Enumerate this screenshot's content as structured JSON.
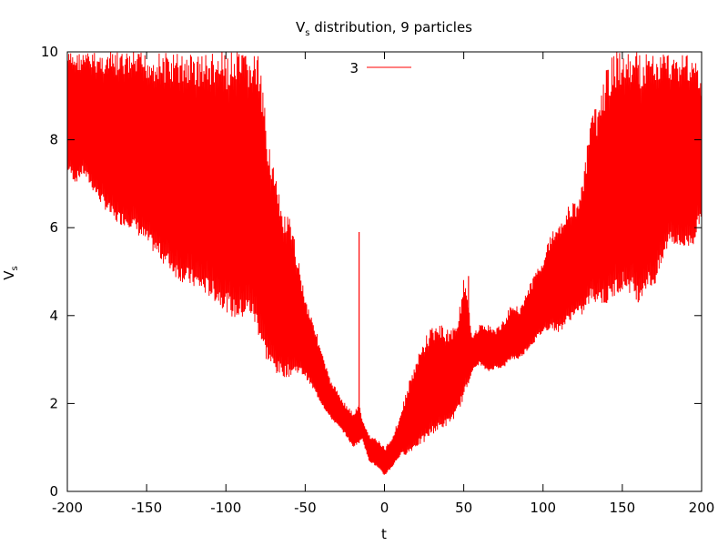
{
  "chart_data": {
    "type": "line",
    "title_main": "V",
    "title_sub": "s",
    "title_rest": " distribution, 9 particles",
    "xlabel": "t",
    "ylabel_main": "V",
    "ylabel_sub": "s",
    "xlim": [
      -200,
      200
    ],
    "ylim": [
      0,
      10
    ],
    "xticks": [
      -200,
      -150,
      -100,
      -50,
      0,
      50,
      100,
      150,
      200
    ],
    "yticks": [
      0,
      2,
      4,
      6,
      8,
      10
    ],
    "xtick_labels": [
      "-200",
      "-150",
      "-100",
      "-50",
      "0",
      "50",
      "100",
      "150",
      "200"
    ],
    "ytick_labels": [
      "0",
      "2",
      "4",
      "6",
      "8",
      "10"
    ],
    "grid": false,
    "legend_position": "top-center",
    "series": [
      {
        "name": "3",
        "color": "#ff0000",
        "lower_envelope": {
          "x": [
            -200,
            -195,
            -190,
            -180,
            -170,
            -160,
            -150,
            -140,
            -130,
            -120,
            -110,
            -100,
            -95,
            -90,
            -85,
            -80,
            -75,
            -70,
            -65,
            -60,
            -55,
            -50,
            -45,
            -40,
            -35,
            -30,
            -25,
            -20,
            -16,
            -14,
            -10,
            -5,
            0,
            5,
            10,
            15,
            20,
            25,
            30,
            35,
            40,
            45,
            50,
            55,
            60,
            65,
            70,
            75,
            80,
            85,
            90,
            95,
            100,
            105,
            110,
            115,
            120,
            125,
            130,
            135,
            140,
            145,
            150,
            155,
            160,
            165,
            170,
            175,
            180,
            185,
            190,
            195,
            200
          ],
          "y": [
            7.3,
            7.0,
            7.2,
            6.6,
            6.1,
            6.0,
            5.6,
            5.2,
            4.8,
            4.6,
            4.4,
            4.1,
            3.9,
            3.9,
            4.0,
            3.6,
            3.0,
            2.7,
            2.6,
            2.6,
            2.7,
            2.6,
            2.3,
            2.0,
            1.7,
            1.5,
            1.3,
            1.0,
            1.1,
            1.2,
            0.7,
            0.55,
            0.35,
            0.55,
            0.8,
            0.85,
            1.0,
            1.1,
            1.3,
            1.4,
            1.5,
            1.7,
            2.1,
            2.7,
            2.9,
            2.7,
            2.8,
            2.8,
            3.0,
            3.0,
            3.2,
            3.4,
            3.6,
            3.7,
            3.6,
            3.8,
            4.0,
            4.0,
            4.3,
            4.3,
            4.2,
            4.4,
            4.6,
            4.5,
            4.3,
            4.6,
            4.6,
            5.1,
            5.7,
            5.5,
            5.5,
            5.6,
            6.3
          ]
        },
        "upper_envelope": {
          "x": [
            -200,
            -195,
            -190,
            -180,
            -170,
            -160,
            -150,
            -140,
            -130,
            -120,
            -110,
            -100,
            -95,
            -90,
            -85,
            -80,
            -75,
            -70,
            -65,
            -60,
            -55,
            -50,
            -45,
            -40,
            -35,
            -30,
            -25,
            -20,
            -16,
            -14,
            -10,
            -5,
            0,
            5,
            10,
            15,
            20,
            25,
            30,
            35,
            40,
            45,
            50,
            55,
            60,
            65,
            70,
            75,
            80,
            85,
            90,
            95,
            100,
            105,
            110,
            115,
            120,
            125,
            130,
            135,
            140,
            145,
            150,
            155,
            160,
            165,
            170,
            175,
            180,
            185,
            190,
            195,
            200
          ],
          "y": [
            10,
            10,
            10,
            10,
            10,
            10,
            10,
            10,
            10,
            10,
            10,
            10,
            10,
            10,
            10,
            10,
            8.5,
            7.4,
            6.4,
            6.2,
            5.4,
            4.4,
            3.9,
            3.2,
            2.6,
            2.3,
            2.0,
            1.8,
            2.0,
            1.6,
            1.3,
            1.2,
            1.0,
            1.3,
            1.8,
            2.5,
            3.0,
            3.5,
            3.8,
            3.8,
            3.7,
            3.8,
            4.9,
            3.6,
            3.8,
            3.8,
            3.7,
            3.9,
            4.3,
            4.2,
            4.6,
            5.0,
            5.4,
            5.9,
            6.2,
            6.5,
            6.6,
            7.1,
            8.6,
            8.8,
            9.7,
            10,
            10,
            10,
            10,
            10,
            10,
            10,
            10,
            10,
            10,
            10,
            9.2
          ]
        },
        "spikes": [
          {
            "x": -16,
            "y": 5.9
          },
          {
            "x": 53,
            "y": 4.9
          },
          {
            "x": 150,
            "y": 9.1
          },
          {
            "x": 160,
            "y": 9.7
          }
        ]
      }
    ]
  }
}
